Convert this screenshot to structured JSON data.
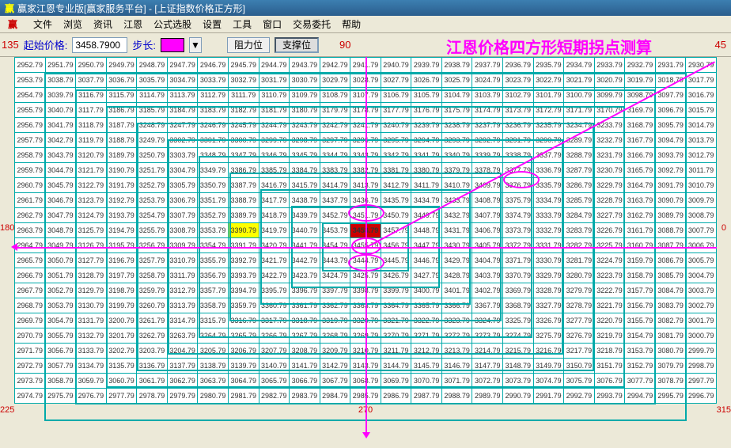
{
  "window": {
    "title": "赢家江恩专业版[赢家服务平台] - [上证指数价格正方形]",
    "logo": "赢"
  },
  "menu": [
    "文件",
    "浏览",
    "资讯",
    "江恩",
    "公式选股",
    "设置",
    "工具",
    "窗口",
    "交易委托",
    "帮助"
  ],
  "toolbar": {
    "start_label": "起始价格:",
    "start_value": "3458.7900",
    "step_label": "步长:",
    "resist_label": "阻力位",
    "support_label": "支撑位",
    "headline": "江恩价格四方形短期拐点测算"
  },
  "axis": {
    "tl": "135",
    "tr": "45",
    "tm": "90",
    "ml": "180",
    "mr": "0",
    "bl": "225",
    "bc": "270",
    "br": "315"
  },
  "grid": {
    "cols": 23,
    "rows": 23,
    "base": 2858.79,
    "step": 1.0,
    "center_value": "3458.79",
    "highlights": [
      {
        "r": 11,
        "c": 7,
        "v": "3390.79"
      }
    ],
    "rings": [
      {
        "r": 11,
        "c": 11
      },
      {
        "r": 10,
        "c": 11
      },
      {
        "r": 12,
        "c": 11
      },
      {
        "r": 7,
        "c": 16
      }
    ],
    "red_cells": [
      [
        0,
        0
      ],
      [
        1,
        1
      ],
      [
        2,
        4
      ],
      [
        3,
        5
      ],
      [
        4,
        6
      ],
      [
        5,
        3
      ],
      [
        6,
        8
      ],
      [
        7,
        9
      ],
      [
        8,
        9
      ],
      [
        9,
        5
      ],
      [
        10,
        3
      ],
      [
        11,
        7
      ],
      [
        12,
        6
      ],
      [
        13,
        4
      ],
      [
        14,
        3
      ],
      [
        15,
        4
      ],
      [
        16,
        2
      ],
      [
        17,
        6
      ],
      [
        18,
        2
      ],
      [
        19,
        3
      ],
      [
        20,
        3
      ],
      [
        21,
        1
      ],
      [
        0,
        22
      ],
      [
        1,
        21
      ],
      [
        2,
        20
      ],
      [
        3,
        19
      ],
      [
        4,
        18
      ],
      [
        5,
        17
      ],
      [
        6,
        16
      ],
      [
        7,
        16
      ],
      [
        8,
        15
      ],
      [
        22,
        0
      ],
      [
        21,
        0
      ]
    ],
    "mag_cells": [
      [
        0,
        12
      ],
      [
        0,
        13
      ],
      [
        3,
        11
      ],
      [
        5,
        11
      ],
      [
        7,
        12
      ],
      [
        8,
        13
      ],
      [
        9,
        12
      ],
      [
        10,
        11
      ],
      [
        10,
        12
      ],
      [
        11,
        10
      ],
      [
        11,
        12
      ],
      [
        12,
        11
      ],
      [
        12,
        12
      ],
      [
        13,
        12
      ],
      [
        14,
        11
      ],
      [
        15,
        10
      ],
      [
        16,
        11
      ],
      [
        17,
        11
      ],
      [
        18,
        11
      ],
      [
        19,
        11
      ],
      [
        20,
        11
      ],
      [
        22,
        11
      ],
      [
        11,
        1
      ],
      [
        11,
        2
      ],
      [
        11,
        19
      ],
      [
        11,
        20
      ],
      [
        11,
        15
      ],
      [
        11,
        16
      ]
    ]
  },
  "colors": {
    "grid_border": "#00aaaa",
    "red": "#cc0000",
    "magenta": "#ff00ff",
    "yellow": "#ffff00"
  }
}
